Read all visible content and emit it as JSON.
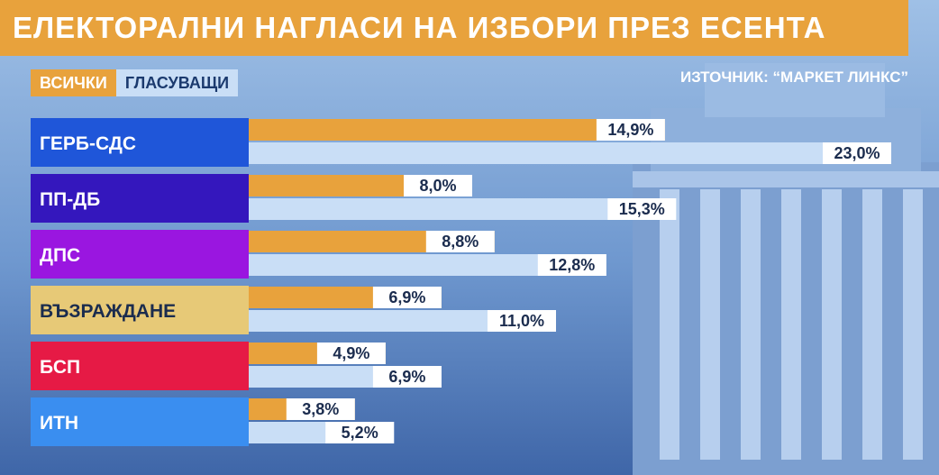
{
  "title": "ЕЛЕКТОРАЛНИ НАГЛАСИ НА ИЗБОРИ ПРЕЗ ЕСЕНТА",
  "source": "ИЗТОЧНИК: “МАРКЕТ ЛИНКС”",
  "colors": {
    "all": "#e8a23c",
    "voters": "#c9def6"
  },
  "chart_data": {
    "type": "bar",
    "orientation": "horizontal",
    "categories": [
      "ГЕРБ-СДС",
      "ПП-ДБ",
      "ДПС",
      "ВЪЗРАЖДАНЕ",
      "БСП",
      "ИТН"
    ],
    "category_colors": [
      "#1f56d9",
      "#3417bd",
      "#9a16e0",
      "#e7c977",
      "#e61a45",
      "#3a8ef0"
    ],
    "series": [
      {
        "name": "ВСИЧКИ",
        "values": [
          14.9,
          8.0,
          8.8,
          6.9,
          4.9,
          3.8
        ],
        "labels": [
          "14,9%",
          "8,0%",
          "8,8%",
          "6,9%",
          "4,9%",
          "3,8%"
        ]
      },
      {
        "name": "ГЛАСУВАЩИ",
        "values": [
          23.0,
          15.3,
          12.8,
          11.0,
          6.9,
          5.2
        ],
        "labels": [
          "23,0%",
          "15,3%",
          "12,8%",
          "11,0%",
          "6,9%",
          "5,2%"
        ]
      }
    ],
    "title": "ЕЛЕКТОРАЛНИ НАГЛАСИ НА ИЗБОРИ ПРЕЗ ЕСЕНТА",
    "legend_position": "top-left"
  }
}
